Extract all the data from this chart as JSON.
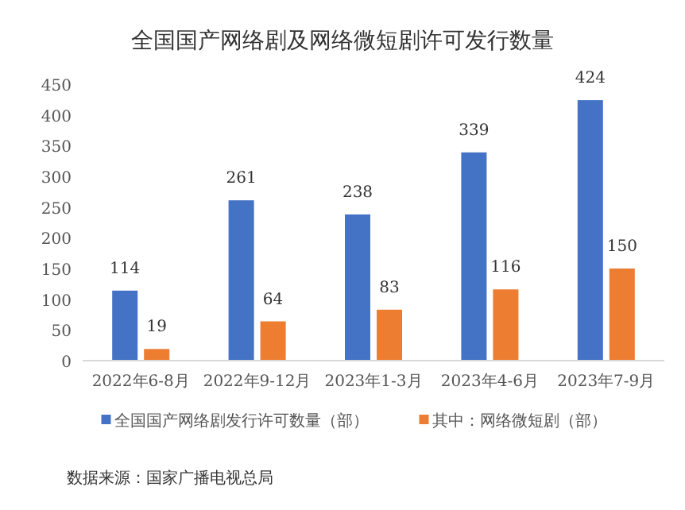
{
  "chart_data": {
    "type": "bar",
    "title": "全国国产网络剧及网络微短剧许可发行数量",
    "categories": [
      "2022年6-8月",
      "2022年9-12月",
      "2023年1-3月",
      "2023年4-6月",
      "2023年7-9月"
    ],
    "series": [
      {
        "name": "全国国产网络剧发行许可数量（部）",
        "color": "#4472c4",
        "values": [
          114,
          261,
          238,
          339,
          424
        ]
      },
      {
        "name": "其中：网络微短剧（部）",
        "color": "#ed7d31",
        "values": [
          19,
          64,
          83,
          116,
          150
        ]
      }
    ],
    "ylim": [
      0,
      450
    ],
    "yticks": [
      0,
      50,
      100,
      150,
      200,
      250,
      300,
      350,
      400,
      450
    ],
    "data_labels": true,
    "legend": "bottom",
    "grid": false,
    "annotations": [
      "数据来源：国家广播电视总局"
    ]
  }
}
